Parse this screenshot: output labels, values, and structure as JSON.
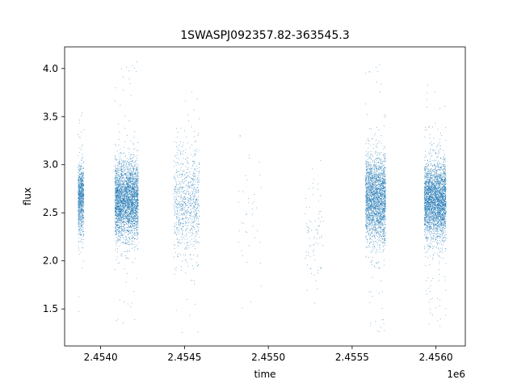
{
  "chart_data": {
    "type": "scatter",
    "title": "1SWASPJ092357.82-363545.3",
    "xlabel": "time",
    "ylabel": "flux",
    "x_offset_label": "1e6",
    "xlim": [
      2453785,
      2456175
    ],
    "ylim": [
      1.115,
      4.225
    ],
    "grid": false,
    "legend": "none",
    "x_ticks": [
      {
        "value": 2454000,
        "label": "2.4540"
      },
      {
        "value": 2454500,
        "label": "2.4545"
      },
      {
        "value": 2455000,
        "label": "2.4550"
      },
      {
        "value": 2455500,
        "label": "2.4555"
      },
      {
        "value": 2456000,
        "label": "2.4560"
      }
    ],
    "y_ticks": [
      {
        "value": 1.5,
        "label": "1.5"
      },
      {
        "value": 2.0,
        "label": "2.0"
      },
      {
        "value": 2.5,
        "label": "2.5"
      },
      {
        "value": 3.0,
        "label": "3.0"
      },
      {
        "value": 3.5,
        "label": "3.5"
      },
      {
        "value": 4.0,
        "label": "4.0"
      }
    ],
    "series": [
      {
        "color": "#1f77b4",
        "clusters": [
          {
            "x_start": 2453865,
            "x_end": 2453900,
            "n": 900,
            "y_center": 2.65,
            "y_sd": 0.18,
            "y_min": 1.45,
            "y_max": 3.6
          },
          {
            "x_start": 2454085,
            "x_end": 2454225,
            "n": 3200,
            "y_center": 2.63,
            "y_sd": 0.2,
            "y_min": 1.35,
            "y_max": 4.1
          },
          {
            "x_start": 2454435,
            "x_end": 2454590,
            "n": 850,
            "y_center": 2.62,
            "y_sd": 0.28,
            "y_min": 1.25,
            "y_max": 3.9
          },
          {
            "x_start": 2454820,
            "x_end": 2454960,
            "n": 40,
            "y_center": 2.5,
            "y_sd": 0.4,
            "y_min": 1.3,
            "y_max": 3.3
          },
          {
            "x_start": 2455215,
            "x_end": 2455330,
            "n": 80,
            "y_center": 2.3,
            "y_sd": 0.3,
            "y_min": 1.55,
            "y_max": 3.2
          },
          {
            "x_start": 2455580,
            "x_end": 2455700,
            "n": 2600,
            "y_center": 2.65,
            "y_sd": 0.22,
            "y_min": 1.25,
            "y_max": 4.1
          },
          {
            "x_start": 2455930,
            "x_end": 2456060,
            "n": 3200,
            "y_center": 2.62,
            "y_sd": 0.2,
            "y_min": 1.3,
            "y_max": 3.85
          }
        ]
      }
    ]
  }
}
